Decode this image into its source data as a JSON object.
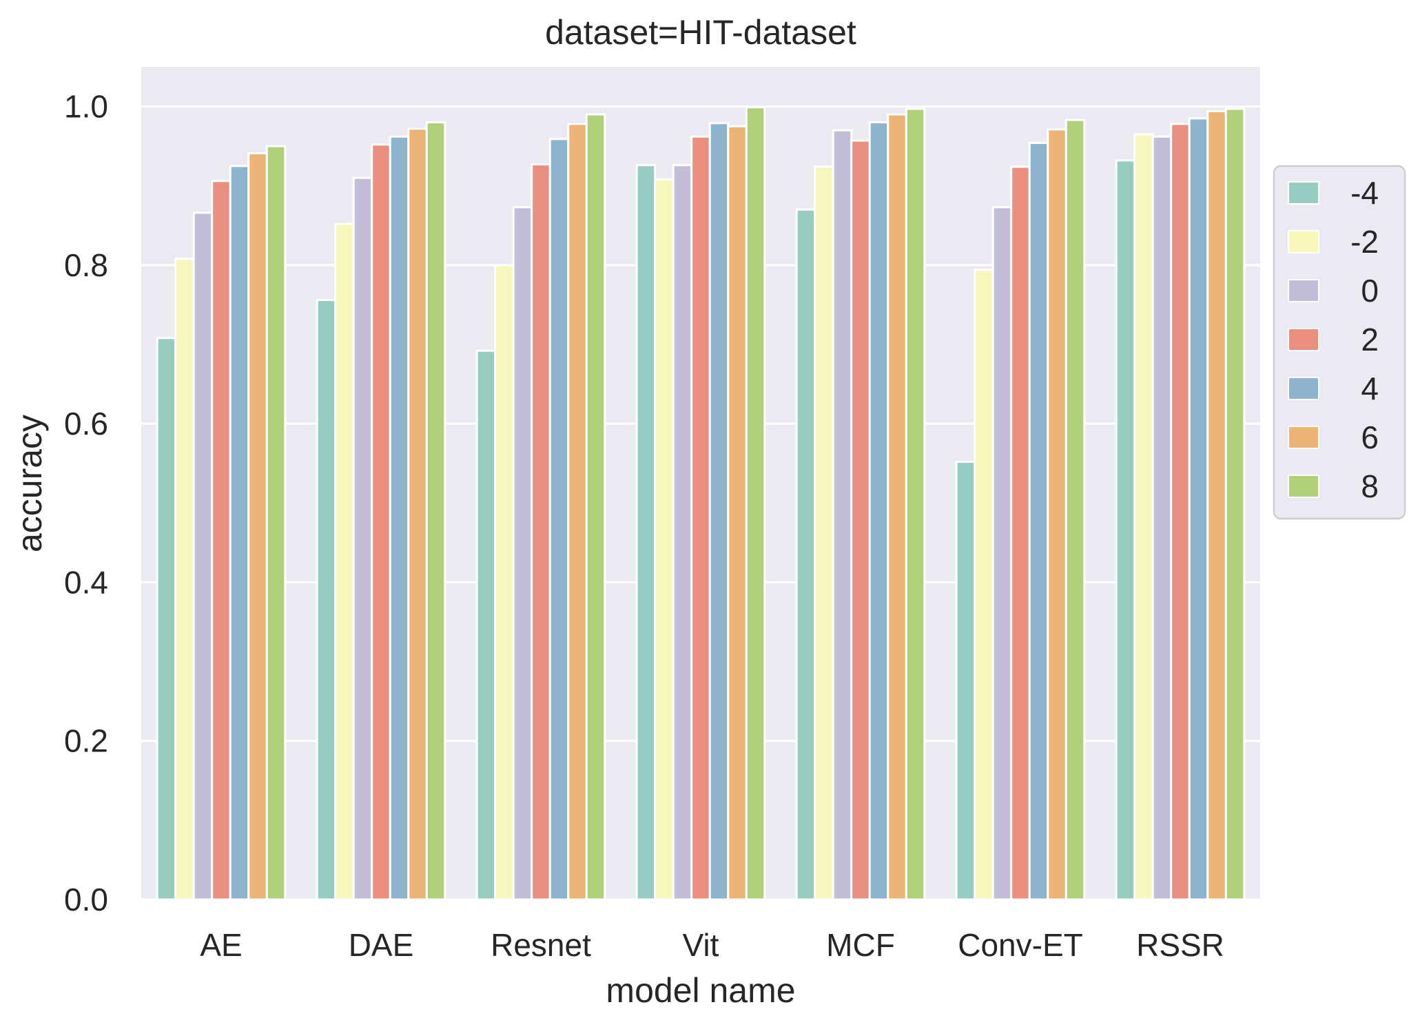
{
  "chart_data": {
    "type": "bar",
    "title": "dataset=HIT-dataset",
    "xlabel": "model name",
    "ylabel": "accuracy",
    "ylim": [
      0,
      1.05
    ],
    "yticks": [
      0.0,
      0.2,
      0.4,
      0.6,
      0.8,
      1.0
    ],
    "ytick_labels": [
      "0.0",
      "0.2",
      "0.4",
      "0.6",
      "0.8",
      "1.0"
    ],
    "grid": true,
    "legend_position": "right",
    "categories": [
      "AE",
      "DAE",
      "Resnet",
      "Vit",
      "MCF",
      "Conv-ET",
      "RSSR"
    ],
    "series": [
      {
        "name": "-4",
        "color": "#98ccc2",
        "values": [
          0.708,
          0.756,
          0.692,
          0.926,
          0.87,
          0.552,
          0.932
        ]
      },
      {
        "name": "-2",
        "color": "#f7f7bb",
        "values": [
          0.808,
          0.852,
          0.8,
          0.908,
          0.924,
          0.794,
          0.965
        ]
      },
      {
        "name": "0",
        "color": "#c3bdd8",
        "values": [
          0.866,
          0.91,
          0.873,
          0.926,
          0.97,
          0.873,
          0.962
        ]
      },
      {
        "name": "2",
        "color": "#ea8f80",
        "values": [
          0.906,
          0.952,
          0.927,
          0.962,
          0.957,
          0.924,
          0.978
        ]
      },
      {
        "name": "4",
        "color": "#8eb3ce",
        "values": [
          0.925,
          0.962,
          0.959,
          0.979,
          0.98,
          0.954,
          0.985
        ]
      },
      {
        "name": "6",
        "color": "#ebb376",
        "values": [
          0.941,
          0.972,
          0.978,
          0.975,
          0.99,
          0.971,
          0.994
        ]
      },
      {
        "name": "8",
        "color": "#b0cf79",
        "values": [
          0.95,
          0.98,
          0.99,
          0.999,
          0.997,
          0.983,
          0.997
        ]
      }
    ]
  }
}
